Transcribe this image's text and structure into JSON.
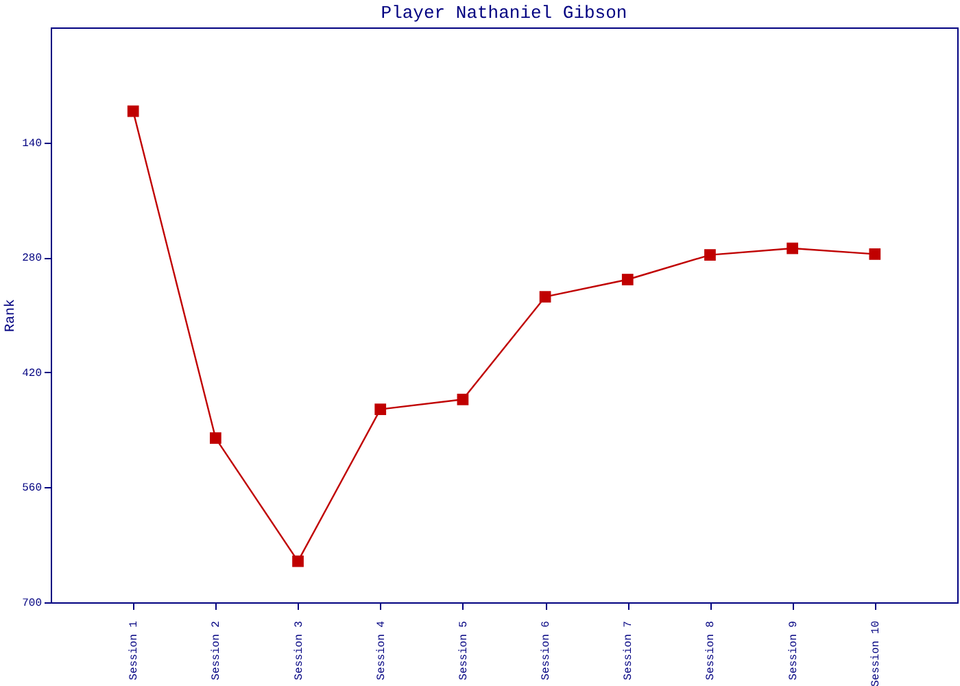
{
  "chart_data": {
    "type": "line",
    "title": "Player Nathaniel Gibson",
    "ylabel": "Rank",
    "categories": [
      "Session 1",
      "Session 2",
      "Session 3",
      "Session 4",
      "Session 5",
      "Session 6",
      "Session 7",
      "Session 8",
      "Session 9",
      "Session 10"
    ],
    "series": [
      {
        "color": "#c00000",
        "values": [
          102,
          500,
          650,
          465,
          453,
          328,
          307,
          277,
          269,
          276
        ]
      }
    ],
    "ylim": [
      700,
      0
    ],
    "yticks": [
      140,
      280,
      420,
      560,
      700
    ],
    "grid": false,
    "legend": false,
    "marker": "square",
    "line_style": "solid"
  }
}
